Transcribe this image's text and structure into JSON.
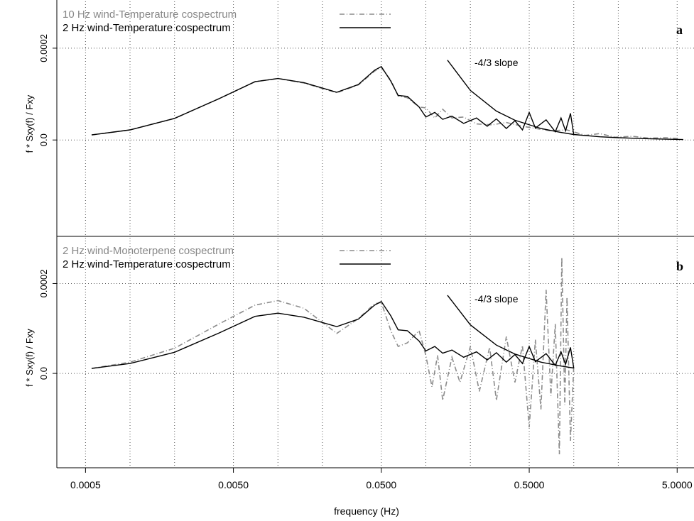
{
  "figure": {
    "xlabel": "frequency (Hz)",
    "x_ticks": [
      "0.0005",
      "0.0050",
      "0.0500",
      "0.5000",
      "5.0000"
    ]
  },
  "chart_data": [
    {
      "type": "line",
      "panel": "a",
      "x_scale": "log",
      "xlim": [
        0.00032,
        6.5
      ],
      "ylim": [
        -0.00021,
        0.000305
      ],
      "ylabel": "f * Sxy(f) / Fxy",
      "y_ticks": [
        "0.0",
        "0.0002"
      ],
      "x_ticks": [
        "0.0005",
        "0.0050",
        "0.0500",
        "0.5000",
        "5.0000"
      ],
      "grid": true,
      "legend_position": "top-left",
      "annotation": "-4/3 slope",
      "series": [
        {
          "name": "10 Hz wind-Temperature cospectrum",
          "color": "#8c8c8c",
          "style": "dashed",
          "points": [
            [
              0.00055,
              1.1e-05
            ],
            [
              0.001,
              2.2e-05
            ],
            [
              0.002,
              4.7e-05
            ],
            [
              0.004,
              9e-05
            ],
            [
              0.007,
              0.000127
            ],
            [
              0.01,
              0.000134
            ],
            [
              0.015,
              0.000124
            ],
            [
              0.025,
              0.000103
            ],
            [
              0.035,
              0.00012
            ],
            [
              0.045,
              0.00015
            ],
            [
              0.05,
              0.000158
            ],
            [
              0.058,
              0.00013
            ],
            [
              0.065,
              9.6e-05
            ],
            [
              0.075,
              9.2e-05
            ],
            [
              0.09,
              7.2e-05
            ],
            [
              0.1,
              7e-05
            ],
            [
              0.115,
              4.8e-05
            ],
            [
              0.13,
              6.7e-05
            ],
            [
              0.15,
              4.8e-05
            ],
            [
              0.18,
              5e-05
            ],
            [
              0.22,
              3.5e-05
            ],
            [
              0.28,
              3.3e-05
            ],
            [
              0.35,
              3.8e-05
            ],
            [
              0.45,
              3e-05
            ],
            [
              0.55,
              2.5e-05
            ],
            [
              0.7,
              2e-05
            ],
            [
              0.9,
              2.2e-05
            ],
            [
              1.2,
              1e-05
            ],
            [
              1.5,
              1.4e-05
            ],
            [
              1.9,
              6e-06
            ],
            [
              2.5,
              8e-06
            ],
            [
              3.2,
              4e-06
            ],
            [
              4.2,
              5e-06
            ],
            [
              5.2,
              3e-06
            ]
          ]
        },
        {
          "name": "2 Hz wind-Temperature cospectrum",
          "color": "#000000",
          "style": "solid",
          "points": [
            [
              0.00055,
              1.1e-05
            ],
            [
              0.001,
              2.2e-05
            ],
            [
              0.002,
              4.7e-05
            ],
            [
              0.004,
              9e-05
            ],
            [
              0.007,
              0.000127
            ],
            [
              0.01,
              0.000134
            ],
            [
              0.015,
              0.000125
            ],
            [
              0.025,
              0.000104
            ],
            [
              0.035,
              0.000121
            ],
            [
              0.045,
              0.000152
            ],
            [
              0.05,
              0.00016
            ],
            [
              0.058,
              0.000128
            ],
            [
              0.065,
              9.7e-05
            ],
            [
              0.075,
              9.5e-05
            ],
            [
              0.09,
              7.2e-05
            ],
            [
              0.1,
              5e-05
            ],
            [
              0.115,
              6e-05
            ],
            [
              0.13,
              4.5e-05
            ],
            [
              0.15,
              5.2e-05
            ],
            [
              0.18,
              3.6e-05
            ],
            [
              0.22,
              4.8e-05
            ],
            [
              0.26,
              3e-05
            ],
            [
              0.3,
              4.6e-05
            ],
            [
              0.35,
              2.5e-05
            ],
            [
              0.4,
              4.2e-05
            ],
            [
              0.45,
              2.2e-05
            ],
            [
              0.5,
              6e-05
            ],
            [
              0.55,
              2.6e-05
            ],
            [
              0.65,
              4.4e-05
            ],
            [
              0.75,
              1.8e-05
            ],
            [
              0.82,
              4.8e-05
            ],
            [
              0.88,
              2e-05
            ],
            [
              0.95,
              5.8e-05
            ],
            [
              1.0,
              1.2e-05
            ]
          ]
        },
        {
          "name": "-4/3 slope",
          "color": "#000000",
          "style": "solid",
          "points": [
            [
              0.14,
              0.000174
            ],
            [
              0.2,
              0.000108
            ],
            [
              0.3,
              6.3e-05
            ],
            [
              0.4,
              4.3e-05
            ],
            [
              0.6,
              2.5e-05
            ],
            [
              0.8,
              1.7e-05
            ],
            [
              1.0,
              1.2e-05
            ],
            [
              1.5,
              7e-06
            ],
            [
              2.0,
              5e-06
            ],
            [
              3.0,
              3e-06
            ],
            [
              4.0,
              2e-06
            ],
            [
              5.5,
              1e-06
            ]
          ]
        }
      ]
    },
    {
      "type": "line",
      "panel": "b",
      "x_scale": "log",
      "xlim": [
        0.00032,
        6.5
      ],
      "ylim": [
        -0.00021,
        0.000305
      ],
      "ylabel": "f * Sxy(f) / Fxy",
      "y_ticks": [
        "0.0",
        "0.0002"
      ],
      "x_ticks": [
        "0.0005",
        "0.0050",
        "0.0500",
        "0.5000",
        "5.0000"
      ],
      "grid": true,
      "legend_position": "top-left",
      "annotation": "-4/3 slope",
      "series": [
        {
          "name": "2 Hz wind-Monoterpene cospectrum",
          "color": "#8c8c8c",
          "style": "dashed",
          "points": [
            [
              0.00055,
              1.1e-05
            ],
            [
              0.001,
              2.5e-05
            ],
            [
              0.002,
              5.6e-05
            ],
            [
              0.004,
              0.00011
            ],
            [
              0.007,
              0.000152
            ],
            [
              0.01,
              0.000162
            ],
            [
              0.015,
              0.000145
            ],
            [
              0.025,
              8.9e-05
            ],
            [
              0.035,
              0.000122
            ],
            [
              0.045,
              0.000155
            ],
            [
              0.05,
              0.000158
            ],
            [
              0.058,
              9.5e-05
            ],
            [
              0.065,
              6e-05
            ],
            [
              0.075,
              6.8e-05
            ],
            [
              0.09,
              9.5e-05
            ],
            [
              0.1,
              4e-05
            ],
            [
              0.11,
              -3e-05
            ],
            [
              0.12,
              4e-05
            ],
            [
              0.13,
              -6e-05
            ],
            [
              0.15,
              3.6e-05
            ],
            [
              0.17,
              -2e-05
            ],
            [
              0.2,
              6e-05
            ],
            [
              0.23,
              -4e-05
            ],
            [
              0.27,
              5.8e-05
            ],
            [
              0.3,
              -6e-05
            ],
            [
              0.35,
              8.2e-05
            ],
            [
              0.4,
              -2e-05
            ],
            [
              0.45,
              6.2e-05
            ],
            [
              0.5,
              -0.00012
            ],
            [
              0.55,
              7.5e-05
            ],
            [
              0.6,
              -8e-05
            ],
            [
              0.65,
              0.000186
            ],
            [
              0.7,
              -5e-05
            ],
            [
              0.75,
              0.00011
            ],
            [
              0.8,
              -0.00018
            ],
            [
              0.83,
              0.000258
            ],
            [
              0.87,
              -7e-05
            ],
            [
              0.9,
              0.00017
            ],
            [
              0.95,
              -0.00015
            ],
            [
              1.0,
              1.5e-05
            ]
          ]
        },
        {
          "name": "2 Hz wind-Temperature cospectrum",
          "color": "#000000",
          "style": "solid",
          "points": [
            [
              0.00055,
              1.1e-05
            ],
            [
              0.001,
              2.2e-05
            ],
            [
              0.002,
              4.7e-05
            ],
            [
              0.004,
              9e-05
            ],
            [
              0.007,
              0.000127
            ],
            [
              0.01,
              0.000134
            ],
            [
              0.015,
              0.000125
            ],
            [
              0.025,
              0.000104
            ],
            [
              0.035,
              0.000121
            ],
            [
              0.045,
              0.000152
            ],
            [
              0.05,
              0.00016
            ],
            [
              0.058,
              0.000128
            ],
            [
              0.065,
              9.7e-05
            ],
            [
              0.075,
              9.5e-05
            ],
            [
              0.09,
              7.2e-05
            ],
            [
              0.1,
              5e-05
            ],
            [
              0.115,
              6e-05
            ],
            [
              0.13,
              4.5e-05
            ],
            [
              0.15,
              5.2e-05
            ],
            [
              0.18,
              3.6e-05
            ],
            [
              0.22,
              4.8e-05
            ],
            [
              0.26,
              3e-05
            ],
            [
              0.3,
              4.6e-05
            ],
            [
              0.35,
              2.5e-05
            ],
            [
              0.4,
              4.2e-05
            ],
            [
              0.45,
              2.2e-05
            ],
            [
              0.5,
              6e-05
            ],
            [
              0.55,
              2.6e-05
            ],
            [
              0.65,
              4.4e-05
            ],
            [
              0.75,
              1.8e-05
            ],
            [
              0.82,
              4.8e-05
            ],
            [
              0.88,
              2e-05
            ],
            [
              0.95,
              5.8e-05
            ],
            [
              1.0,
              1.2e-05
            ]
          ]
        },
        {
          "name": "-4/3 slope",
          "color": "#000000",
          "style": "solid",
          "points": [
            [
              0.14,
              0.000174
            ],
            [
              0.2,
              0.000108
            ],
            [
              0.3,
              6.3e-05
            ],
            [
              0.4,
              4.3e-05
            ],
            [
              0.6,
              2.5e-05
            ],
            [
              0.8,
              1.7e-05
            ],
            [
              1.0,
              1.2e-05
            ]
          ]
        }
      ]
    }
  ]
}
